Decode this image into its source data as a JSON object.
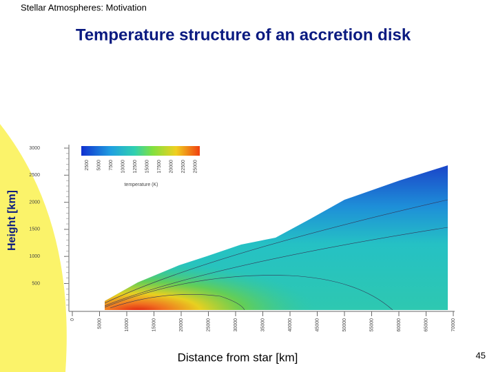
{
  "header": {
    "section": "Stellar Atmospheres:   Motivation"
  },
  "slide": {
    "title": "Temperature structure of an accretion disk",
    "page_number": "45"
  },
  "figure": {
    "y_axis_label": "Height [km]",
    "x_axis_label": "Distance from star  [km]",
    "y_tick_labels": [
      "3000",
      "2500",
      "2000",
      "1500",
      "1000",
      "500"
    ],
    "x_tick_labels": [
      "0",
      "5000",
      "10000",
      "15000",
      "20000",
      "25000",
      "30000",
      "35000",
      "40000",
      "45000",
      "50000",
      "55000",
      "60000",
      "65000",
      "70000"
    ],
    "colorbar_tick_labels": [
      "2500",
      "5000",
      "7500",
      "10000",
      "12500",
      "15000",
      "17500",
      "20000",
      "22500",
      "25000"
    ],
    "colorbar_label": "temperature (K)"
  }
}
